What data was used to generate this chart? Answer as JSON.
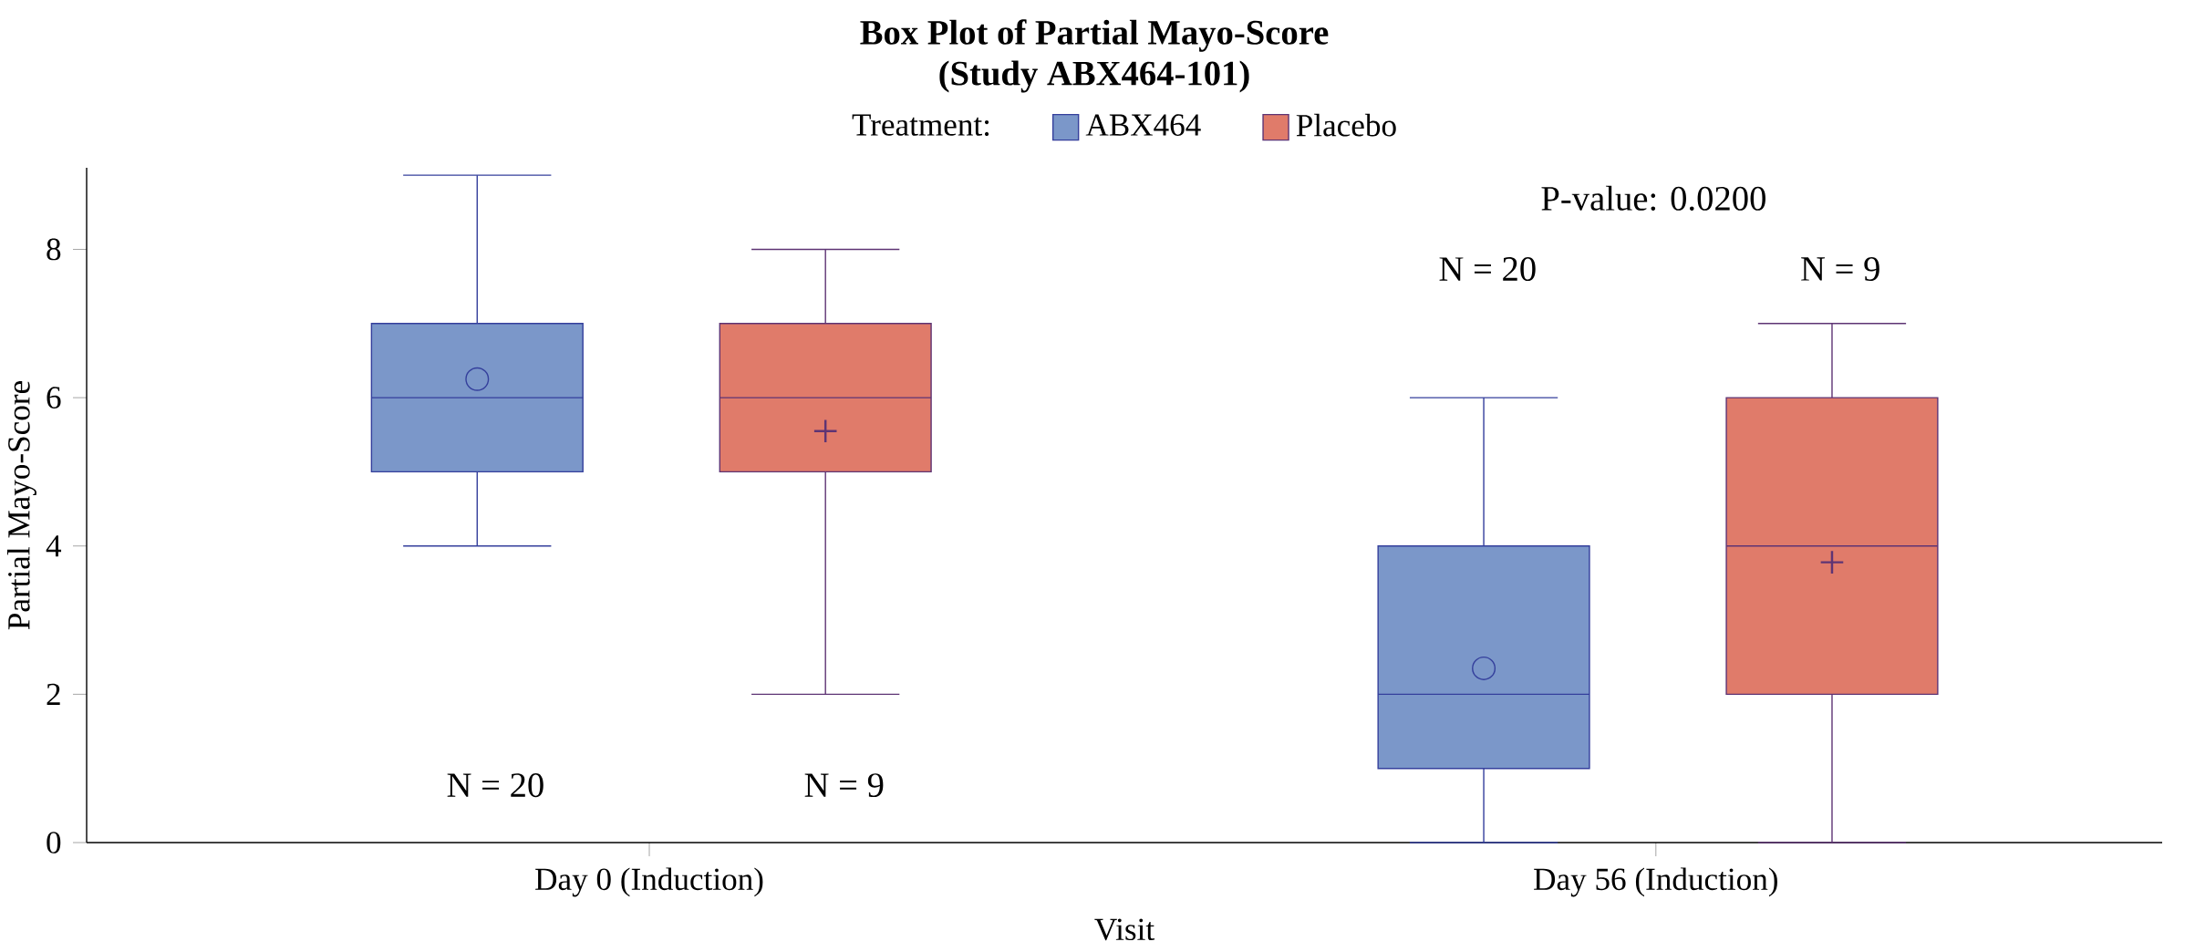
{
  "chart_data": {
    "type": "box",
    "title": "Box Plot of Partial Mayo-Score",
    "subtitle": "(Study ABX464-101)",
    "xlabel": "Visit",
    "ylabel": "Partial Mayo-Score",
    "legend_title": "Treatment:",
    "legend": "top",
    "grid": false,
    "categories": [
      "Day 0 (Induction)",
      "Day 56 (Induction)"
    ],
    "ylim": [
      0,
      9.1
    ],
    "yticks": [
      0,
      2,
      4,
      6,
      8
    ],
    "series": [
      {
        "name": "ABX464",
        "color": "#7b97c9",
        "marker": "circle",
        "boxes": [
          {
            "low": 4,
            "q1": 5,
            "median": 6,
            "q3": 7,
            "high": 9,
            "mean": 6.25
          },
          {
            "low": 0,
            "q1": 1,
            "median": 2,
            "q3": 4,
            "high": 6,
            "mean": 2.35
          }
        ]
      },
      {
        "name": "Placebo",
        "color": "#e07b6a",
        "marker": "cross",
        "boxes": [
          {
            "low": 2,
            "q1": 5,
            "median": 6,
            "q3": 7,
            "high": 8,
            "mean": 5.55
          },
          {
            "low": 0,
            "q1": 2,
            "median": 4,
            "q3": 6,
            "high": 7,
            "mean": 3.78
          }
        ]
      }
    ],
    "annotations": [
      "N = 20",
      "N = 9",
      "P-value: 0.0200",
      "N = 20",
      "N = 9"
    ]
  }
}
